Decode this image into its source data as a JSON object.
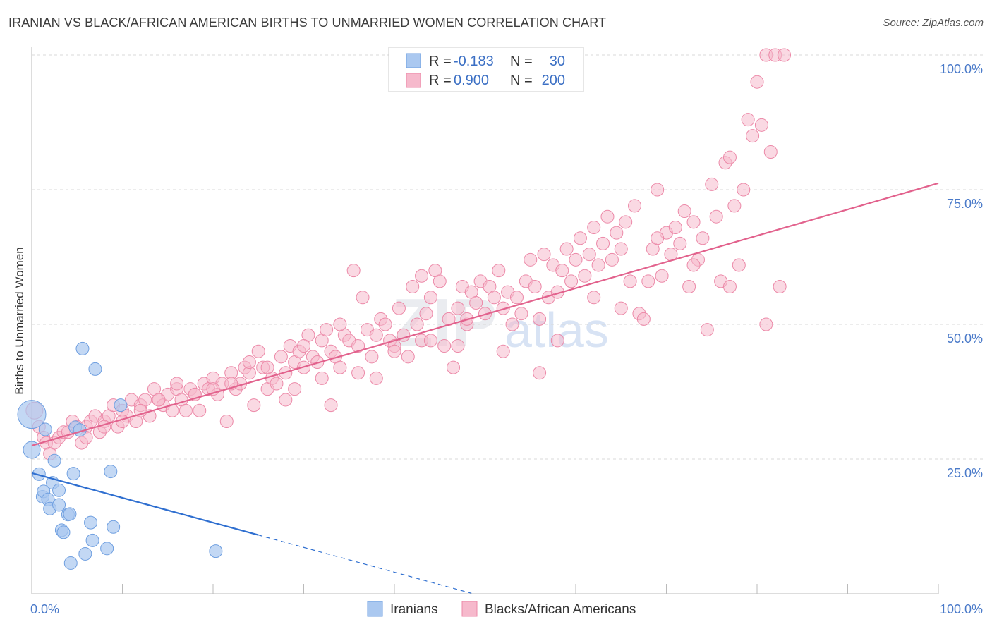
{
  "title": "IRANIAN VS BLACK/AFRICAN AMERICAN BIRTHS TO UNMARRIED WOMEN CORRELATION CHART",
  "source": "Source: ZipAtlas.com",
  "watermark": {
    "zip": "ZIP",
    "atlas": "atlas"
  },
  "colors": {
    "blue_fill": "#aac8f0",
    "blue_stroke": "#6f9fe0",
    "blue_line": "#2f6fd0",
    "pink_fill": "#f6b9cc",
    "pink_stroke": "#ec89a8",
    "pink_line": "#e2628d",
    "grid": "#d8d8d8",
    "tick_text": "#4a7ac9"
  },
  "legend": {
    "rows": [
      {
        "r_label": "R =",
        "r_value": "-0.183",
        "n_label": "N =",
        "n_value": "30",
        "series": "iranians"
      },
      {
        "r_label": "R =",
        "r_value": "0.900",
        "n_label": "N =",
        "n_value": "200",
        "series": "blacks"
      }
    ]
  },
  "bottom_legend": {
    "iranians": "Iranians",
    "blacks": "Blacks/African Americans"
  },
  "chart_data": {
    "type": "scatter",
    "title": "IRANIAN VS BLACK/AFRICAN AMERICAN BIRTHS TO UNMARRIED WOMEN CORRELATION CHART",
    "ylabel": "Births to Unmarried Women",
    "xlabel": "",
    "xlim": [
      0,
      100
    ],
    "ylim": [
      0,
      100
    ],
    "x_tick_labels": {
      "left": "0.0%",
      "right": "100.0%"
    },
    "y_ticks": [
      {
        "value": 100,
        "label": "100.0%"
      },
      {
        "value": 75,
        "label": "75.0%"
      },
      {
        "value": 50,
        "label": "50.0%"
      },
      {
        "value": 25,
        "label": "25.0%"
      }
    ],
    "grid": true,
    "series": [
      {
        "name": "Iranians",
        "key": "iranians",
        "r": -0.183,
        "n": 30,
        "trend": {
          "x0": 0,
          "y0": 22.4,
          "x1": 25,
          "y1": 10.9,
          "dash_to_x": 48.5
        },
        "points": [
          [
            0,
            33.3,
            20
          ],
          [
            0,
            26.7,
            12
          ],
          [
            0.8,
            22.2,
            9
          ],
          [
            1.2,
            18.0,
            9
          ],
          [
            1.3,
            19.0,
            9
          ],
          [
            1.5,
            30.5,
            9
          ],
          [
            1.8,
            17.5,
            9
          ],
          [
            2.0,
            15.8,
            9
          ],
          [
            2.3,
            20.6,
            9
          ],
          [
            2.5,
            24.7,
            9
          ],
          [
            3.0,
            19.2,
            9
          ],
          [
            3.0,
            16.5,
            9
          ],
          [
            3.3,
            11.8,
            9
          ],
          [
            3.5,
            11.4,
            9
          ],
          [
            4.0,
            14.7,
            9
          ],
          [
            4.2,
            14.8,
            9
          ],
          [
            4.3,
            5.7,
            9
          ],
          [
            4.6,
            22.3,
            9
          ],
          [
            4.8,
            30.9,
            9
          ],
          [
            5.3,
            30.4,
            9
          ],
          [
            5.6,
            45.5,
            9
          ],
          [
            5.9,
            7.4,
            9
          ],
          [
            6.5,
            13.2,
            9
          ],
          [
            6.7,
            9.9,
            9
          ],
          [
            7.0,
            41.7,
            9
          ],
          [
            8.3,
            8.4,
            9
          ],
          [
            8.7,
            22.7,
            9
          ],
          [
            9.0,
            12.4,
            9
          ],
          [
            9.8,
            35.0,
            9
          ],
          [
            20.3,
            7.9,
            9
          ]
        ]
      },
      {
        "name": "Blacks/African Americans",
        "key": "blacks",
        "r": 0.9,
        "n": 200,
        "trend": {
          "x0": 0,
          "y0": 27.5,
          "x1": 100,
          "y1": 76.2
        },
        "points": [
          [
            0.3,
            34,
            12
          ],
          [
            0.8,
            31,
            9
          ],
          [
            1.3,
            29,
            9
          ],
          [
            1.6,
            28,
            9
          ],
          [
            2.0,
            26,
            9
          ],
          [
            2.5,
            28,
            9
          ],
          [
            3.0,
            29,
            9
          ],
          [
            3.5,
            30,
            9
          ],
          [
            4.0,
            30,
            9
          ],
          [
            4.5,
            32,
            9
          ],
          [
            5.0,
            31,
            9
          ],
          [
            5.5,
            28,
            9
          ],
          [
            6.0,
            31,
            9
          ],
          [
            6.5,
            32,
            9
          ],
          [
            7.0,
            33,
            9
          ],
          [
            7.5,
            30,
            9
          ],
          [
            8.0,
            32,
            9
          ],
          [
            8.5,
            33,
            9
          ],
          [
            9.0,
            35,
            9
          ],
          [
            9.5,
            31,
            9
          ],
          [
            10.0,
            34,
            9
          ],
          [
            10.5,
            33,
            9
          ],
          [
            11.0,
            36,
            9
          ],
          [
            11.5,
            32,
            9
          ],
          [
            12.0,
            35,
            9
          ],
          [
            12.5,
            36,
            9
          ],
          [
            13.0,
            33,
            9
          ],
          [
            13.5,
            38,
            9
          ],
          [
            14.0,
            36,
            9
          ],
          [
            14.5,
            35,
            9
          ],
          [
            15.0,
            37,
            9
          ],
          [
            15.5,
            34,
            9
          ],
          [
            16.0,
            38,
            9
          ],
          [
            16.5,
            36,
            9
          ],
          [
            17.0,
            34,
            9
          ],
          [
            17.5,
            38,
            9
          ],
          [
            18.0,
            37,
            9
          ],
          [
            18.5,
            34,
            9
          ],
          [
            19.0,
            39,
            9
          ],
          [
            19.5,
            38,
            9
          ],
          [
            20.0,
            40,
            9
          ],
          [
            20.5,
            37,
            9
          ],
          [
            21.0,
            39,
            9
          ],
          [
            21.5,
            32,
            9
          ],
          [
            22.0,
            41,
            9
          ],
          [
            22.5,
            38,
            9
          ],
          [
            23.0,
            39,
            9
          ],
          [
            23.5,
            42,
            9
          ],
          [
            24.0,
            41,
            9
          ],
          [
            24.5,
            35,
            9
          ],
          [
            25.0,
            45,
            9
          ],
          [
            25.5,
            42,
            9
          ],
          [
            26.0,
            38,
            9
          ],
          [
            26.5,
            40,
            9
          ],
          [
            27.0,
            39,
            9
          ],
          [
            27.5,
            44,
            9
          ],
          [
            28.0,
            41,
            9
          ],
          [
            28.5,
            46,
            9
          ],
          [
            29.0,
            43,
            9
          ],
          [
            29.5,
            45,
            9
          ],
          [
            30.0,
            42,
            9
          ],
          [
            30.5,
            48,
            9
          ],
          [
            31.0,
            44,
            9
          ],
          [
            31.5,
            43,
            9
          ],
          [
            32.0,
            47,
            9
          ],
          [
            32.5,
            49,
            9
          ],
          [
            33.0,
            45,
            9
          ],
          [
            33.5,
            44,
            9
          ],
          [
            34.0,
            42,
            9
          ],
          [
            34.5,
            48,
            9
          ],
          [
            35.0,
            47,
            9
          ],
          [
            35.5,
            60,
            9
          ],
          [
            36.0,
            46,
            9
          ],
          [
            36.5,
            55,
            9
          ],
          [
            37.0,
            49,
            9
          ],
          [
            37.5,
            44,
            9
          ],
          [
            38.0,
            48,
            9
          ],
          [
            38.5,
            51,
            9
          ],
          [
            39.0,
            50,
            9
          ],
          [
            39.5,
            47,
            9
          ],
          [
            40.0,
            46,
            9
          ],
          [
            40.5,
            53,
            9
          ],
          [
            41.0,
            48,
            9
          ],
          [
            41.5,
            44,
            9
          ],
          [
            42.0,
            57,
            9
          ],
          [
            42.5,
            50,
            9
          ],
          [
            43.0,
            47,
            9
          ],
          [
            43.5,
            52,
            9
          ],
          [
            44.0,
            55,
            9
          ],
          [
            44.5,
            60,
            9
          ],
          [
            45.0,
            58,
            9
          ],
          [
            45.5,
            46,
            9
          ],
          [
            46.0,
            51,
            9
          ],
          [
            46.5,
            42,
            9
          ],
          [
            47.0,
            53,
            9
          ],
          [
            47.5,
            57,
            9
          ],
          [
            48.0,
            50,
            9
          ],
          [
            48.5,
            56,
            9
          ],
          [
            49.0,
            54,
            9
          ],
          [
            49.5,
            58,
            9
          ],
          [
            50.0,
            52,
            9
          ],
          [
            50.5,
            57,
            9
          ],
          [
            51.0,
            55,
            9
          ],
          [
            51.5,
            60,
            9
          ],
          [
            52.0,
            53,
            9
          ],
          [
            52.5,
            56,
            9
          ],
          [
            53.0,
            50,
            9
          ],
          [
            53.5,
            55,
            9
          ],
          [
            54.0,
            52,
            9
          ],
          [
            54.5,
            58,
            9
          ],
          [
            55.0,
            62,
            9
          ],
          [
            55.5,
            57,
            9
          ],
          [
            56.0,
            51,
            9
          ],
          [
            56.5,
            63,
            9
          ],
          [
            57.0,
            55,
            9
          ],
          [
            57.5,
            61,
            9
          ],
          [
            58.0,
            56,
            9
          ],
          [
            58.5,
            60,
            9
          ],
          [
            59.0,
            64,
            9
          ],
          [
            59.5,
            58,
            9
          ],
          [
            60.0,
            62,
            9
          ],
          [
            60.5,
            66,
            9
          ],
          [
            61.0,
            59,
            9
          ],
          [
            61.5,
            63,
            9
          ],
          [
            62.0,
            68,
            9
          ],
          [
            62.5,
            61,
            9
          ],
          [
            63.0,
            65,
            9
          ],
          [
            63.5,
            70,
            9
          ],
          [
            64.0,
            62,
            9
          ],
          [
            64.5,
            67,
            9
          ],
          [
            65.0,
            64,
            9
          ],
          [
            65.5,
            69,
            9
          ],
          [
            66.0,
            58,
            9
          ],
          [
            66.5,
            72,
            9
          ],
          [
            67.0,
            52,
            9
          ],
          [
            67.5,
            51,
            9
          ],
          [
            68.0,
            58,
            9
          ],
          [
            68.5,
            64,
            9
          ],
          [
            69.0,
            75,
            9
          ],
          [
            69.5,
            59,
            9
          ],
          [
            70.0,
            67,
            9
          ],
          [
            70.5,
            63,
            9
          ],
          [
            71.0,
            68,
            9
          ],
          [
            71.5,
            65,
            9
          ],
          [
            72.0,
            71,
            9
          ],
          [
            72.5,
            57,
            9
          ],
          [
            73.0,
            69,
            9
          ],
          [
            73.5,
            62,
            9
          ],
          [
            74.0,
            66,
            9
          ],
          [
            74.5,
            49,
            9
          ],
          [
            75.0,
            76,
            9
          ],
          [
            75.5,
            70,
            9
          ],
          [
            76.0,
            58,
            9
          ],
          [
            76.5,
            80,
            9
          ],
          [
            77.0,
            81,
            9
          ],
          [
            77.5,
            72,
            9
          ],
          [
            78.0,
            61,
            9
          ],
          [
            78.5,
            75,
            9
          ],
          [
            79.0,
            88,
            9
          ],
          [
            79.5,
            85,
            9
          ],
          [
            80.0,
            95,
            9
          ],
          [
            80.5,
            87,
            9
          ],
          [
            81.0,
            100,
            9
          ],
          [
            81.5,
            82,
            9
          ],
          [
            82.0,
            100,
            9
          ],
          [
            82.5,
            57,
            9
          ],
          [
            83.0,
            100,
            9
          ],
          [
            62.0,
            55,
            9
          ],
          [
            56.0,
            41,
            9
          ],
          [
            47.0,
            46,
            9
          ],
          [
            43.0,
            59,
            9
          ],
          [
            38.0,
            40,
            9
          ],
          [
            33.0,
            35,
            9
          ],
          [
            29.0,
            38,
            9
          ],
          [
            58.0,
            47,
            9
          ],
          [
            65.0,
            53,
            9
          ],
          [
            69.0,
            66,
            9
          ],
          [
            73.0,
            61,
            9
          ],
          [
            77.0,
            57,
            9
          ],
          [
            81.0,
            50,
            9
          ],
          [
            52.0,
            45,
            9
          ],
          [
            48.0,
            51,
            9
          ],
          [
            44.0,
            47,
            9
          ],
          [
            40.0,
            45,
            9
          ],
          [
            36.0,
            41,
            9
          ],
          [
            32.0,
            40,
            9
          ],
          [
            28.0,
            36,
            9
          ],
          [
            24.0,
            43,
            9
          ],
          [
            20.0,
            38,
            9
          ],
          [
            16.0,
            39,
            9
          ],
          [
            12.0,
            34,
            9
          ],
          [
            8.0,
            31,
            9
          ],
          [
            6.0,
            29,
            9
          ],
          [
            10.0,
            32,
            9
          ],
          [
            14.0,
            36,
            9
          ],
          [
            18.0,
            37,
            9
          ],
          [
            22.0,
            39,
            9
          ],
          [
            26.0,
            42,
            9
          ],
          [
            30.0,
            46,
            9
          ],
          [
            34.0,
            50,
            9
          ]
        ]
      }
    ]
  }
}
